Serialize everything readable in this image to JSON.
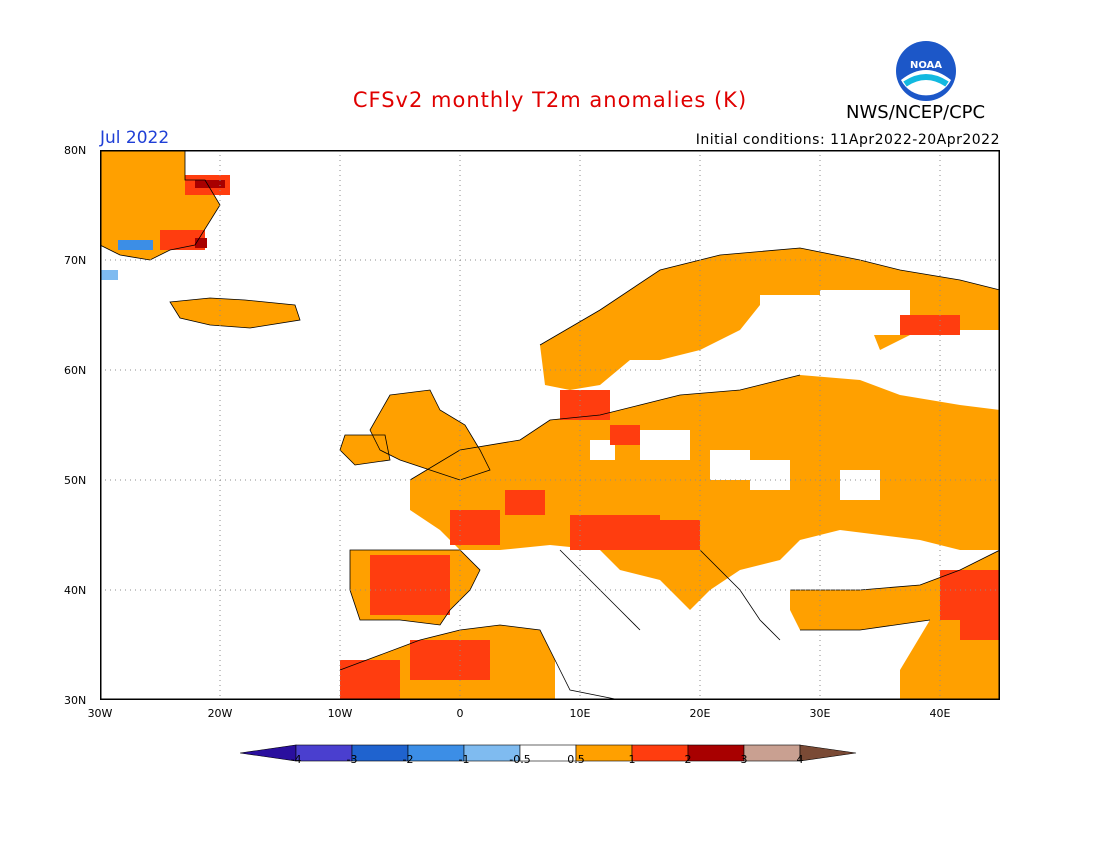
{
  "header": {
    "title": "CFSv2 monthly T2m anomalies (K)",
    "agency": "NWS/NCEP/CPC",
    "month": "Jul 2022",
    "initial_conditions": "Initial conditions: 11Apr2022-20Apr2022",
    "logo_text": "NOAA"
  },
  "map": {
    "extent": {
      "lon_min": -30,
      "lon_max": 45,
      "lat_min": 30,
      "lat_max": 80
    },
    "grid": true,
    "lat_labels": [
      "80N",
      "70N",
      "60N",
      "50N",
      "40N",
      "30N"
    ],
    "lon_labels": [
      "30W",
      "20W",
      "10W",
      "0",
      "10E",
      "20E",
      "30E",
      "40E"
    ]
  },
  "legend": {
    "labels": [
      "-4",
      "-3",
      "-2",
      "-1",
      "-0.5",
      "0.5",
      "1",
      "2",
      "3",
      "4"
    ],
    "colors": [
      "#2a0f9e",
      "#4a3fcf",
      "#1f63cf",
      "#3c8ee6",
      "#7fbbf0",
      "#ffffff",
      "#ffa000",
      "#ff3d0f",
      "#a80000",
      "#c9a091",
      "#7a4a35"
    ]
  }
}
